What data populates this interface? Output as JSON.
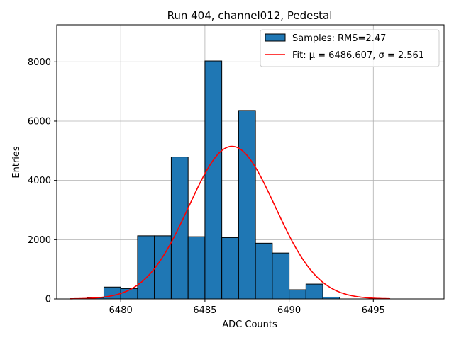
{
  "chart_data": {
    "type": "bar",
    "title": "Run 404, channel012, Pedestal",
    "xlabel": "ADC Counts",
    "ylabel": "Entries",
    "xlim": [
      6476.2,
      6499.2
    ],
    "ylim": [
      0,
      9250
    ],
    "grid": true,
    "legend_position": "top-right",
    "xticks": [
      6480,
      6485,
      6490,
      6495
    ],
    "yticks": [
      0,
      2000,
      4000,
      6000,
      8000
    ],
    "bin_edges": [
      6478,
      6479,
      6480,
      6481,
      6482,
      6483,
      6484,
      6485,
      6486,
      6487,
      6488,
      6489,
      6490,
      6491,
      6492,
      6493,
      6494
    ],
    "values": [
      40,
      400,
      350,
      2130,
      2130,
      4790,
      2100,
      8030,
      2070,
      6360,
      1880,
      1550,
      310,
      500,
      60,
      0
    ],
    "bar_color": "#1f77b4",
    "fit": {
      "mu": 6486.607,
      "sigma": 2.561,
      "amplitude": 5150,
      "x_range": [
        6477,
        6496
      ],
      "color": "#ff0000"
    },
    "legend": {
      "samples_label": "Samples: RMS=2.47",
      "fit_label": "Fit: μ = 6486.607, σ = 2.561"
    }
  }
}
